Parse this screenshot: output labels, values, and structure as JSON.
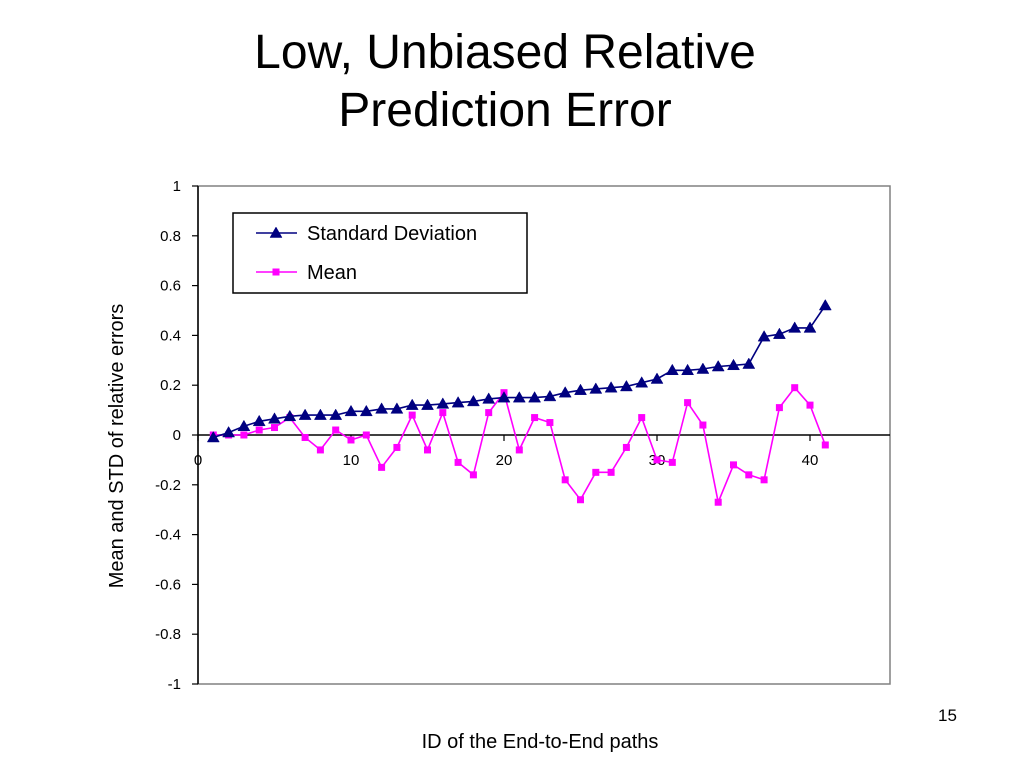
{
  "slide": {
    "title_line1": "Low, Unbiased Relative",
    "title_line2": "Prediction Error",
    "number": "15"
  },
  "colors": {
    "std_series": "#000080",
    "mean_series": "#FF00FF",
    "axis": "#000000",
    "plot_border": "#808080"
  },
  "chart_data": {
    "type": "line",
    "xlabel": "ID of the End-to-End paths",
    "ylabel": "Mean and STD of relative errors",
    "xlim": [
      0,
      45
    ],
    "ylim": [
      -1,
      1
    ],
    "x_ticks": [
      0,
      10,
      20,
      30,
      40
    ],
    "y_ticks": [
      1,
      0.8,
      0.6,
      0.4,
      0.2,
      0,
      -0.2,
      -0.4,
      -0.6,
      -0.8,
      -1
    ],
    "y_tick_labels": [
      "1",
      "0.8",
      "0.6",
      "0.4",
      "0.2",
      "0",
      "-0.2",
      "-0.4",
      "-0.6",
      "-0.8",
      "-1"
    ],
    "x_tick_labels": [
      "0",
      "10",
      "20",
      "30",
      "40"
    ],
    "grid": false,
    "legend_position": "top-left",
    "x": [
      1,
      2,
      3,
      4,
      5,
      6,
      7,
      8,
      9,
      10,
      11,
      12,
      13,
      14,
      15,
      16,
      17,
      18,
      19,
      20,
      21,
      22,
      23,
      24,
      25,
      26,
      27,
      28,
      29,
      30,
      31,
      32,
      33,
      34,
      35,
      36,
      37,
      38,
      39,
      40,
      41
    ],
    "series": [
      {
        "name": "Standard Deviation",
        "marker": "triangle",
        "values": [
          -0.01,
          0.01,
          0.035,
          0.055,
          0.065,
          0.075,
          0.08,
          0.08,
          0.08,
          0.095,
          0.095,
          0.105,
          0.105,
          0.12,
          0.12,
          0.125,
          0.13,
          0.135,
          0.145,
          0.15,
          0.15,
          0.15,
          0.155,
          0.17,
          0.18,
          0.185,
          0.19,
          0.195,
          0.21,
          0.225,
          0.26,
          0.26,
          0.265,
          0.275,
          0.28,
          0.285,
          0.395,
          0.405,
          0.43,
          0.43,
          0.52
        ]
      },
      {
        "name": "Mean",
        "marker": "square",
        "values": [
          0.0,
          0.0,
          0.0,
          0.02,
          0.03,
          0.07,
          -0.01,
          -0.06,
          0.02,
          -0.02,
          0.0,
          -0.13,
          -0.05,
          0.08,
          -0.06,
          0.09,
          -0.11,
          -0.16,
          0.09,
          0.17,
          -0.06,
          0.07,
          0.05,
          -0.18,
          -0.26,
          -0.15,
          -0.15,
          -0.05,
          0.07,
          -0.1,
          -0.11,
          0.13,
          0.04,
          -0.27,
          -0.12,
          -0.16,
          -0.18,
          0.11,
          0.19,
          0.12,
          -0.04
        ]
      }
    ]
  }
}
